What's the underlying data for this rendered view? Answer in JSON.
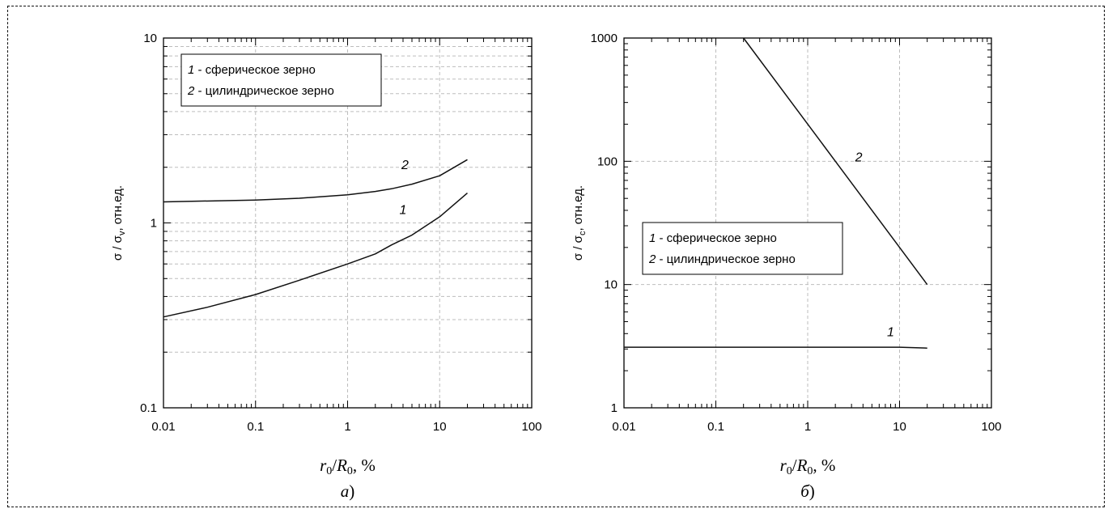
{
  "chart_data": [
    {
      "type": "line",
      "panel": "а)",
      "panel_letter": "а",
      "xlabel": "r0/R0, %",
      "xlabel_parts": {
        "r": "r",
        "r_sub": "0",
        "slash": "/",
        "R": "R",
        "R_sub": "0",
        "unit": ", %"
      },
      "ylabel": "σ / σv, отн.ед.",
      "ylabel_parts": {
        "main": "σ / σ",
        "sub": "v",
        "tail": ", отн.ед."
      },
      "x_scale": "log",
      "y_scale": "log",
      "xlim": [
        0.01,
        100
      ],
      "ylim": [
        0.1,
        10
      ],
      "x_ticks": [
        "0.01",
        "0.1",
        "1",
        "10",
        "100"
      ],
      "y_ticks": [
        "0.1",
        "1",
        "10"
      ],
      "grid": true,
      "legend_position": "top-left",
      "legend": [
        {
          "num": "1",
          "text": " - сферическое зерно"
        },
        {
          "num": "2",
          "text": " - цилиндрическое зерно"
        }
      ],
      "series": [
        {
          "name": "1",
          "x": [
            0.01,
            0.03,
            0.1,
            0.3,
            1,
            2,
            3,
            5,
            10,
            20
          ],
          "y": [
            0.31,
            0.35,
            0.41,
            0.49,
            0.6,
            0.68,
            0.76,
            0.86,
            1.08,
            1.45
          ]
        },
        {
          "name": "2",
          "x": [
            0.01,
            0.1,
            0.3,
            1,
            2,
            3,
            5,
            10,
            20
          ],
          "y": [
            1.3,
            1.33,
            1.36,
            1.42,
            1.48,
            1.53,
            1.62,
            1.8,
            2.2
          ]
        }
      ],
      "curve_labels": [
        {
          "text": "1",
          "x": 4,
          "y": 1.12
        },
        {
          "text": "2",
          "x": 4.2,
          "y": 1.95
        }
      ]
    },
    {
      "type": "line",
      "panel": "б)",
      "panel_letter": "б",
      "xlabel": "r0/R0, %",
      "xlabel_parts": {
        "r": "r",
        "r_sub": "0",
        "slash": "/",
        "R": "R",
        "R_sub": "0",
        "unit": ", %"
      },
      "ylabel": "σ / σc, отн.ед.",
      "ylabel_parts": {
        "main": "σ / σ",
        "sub": "c",
        "tail": ", отн.ед."
      },
      "x_scale": "log",
      "y_scale": "log",
      "xlim": [
        0.01,
        100
      ],
      "ylim": [
        1,
        1000
      ],
      "x_ticks": [
        "0.01",
        "0.1",
        "1",
        "10",
        "100"
      ],
      "y_ticks": [
        "1",
        "10",
        "100",
        "1000"
      ],
      "grid": true,
      "legend_position": "center-left",
      "legend": [
        {
          "num": "1",
          "text": " - сферическое зерно"
        },
        {
          "num": "2",
          "text": " - цилиндрическое зерно"
        }
      ],
      "series": [
        {
          "name": "1",
          "x": [
            0.01,
            0.1,
            1,
            10,
            20
          ],
          "y": [
            3.1,
            3.1,
            3.1,
            3.1,
            3.05
          ]
        },
        {
          "name": "2",
          "x": [
            0.2,
            2,
            20
          ],
          "y": [
            1000,
            100,
            10
          ]
        }
      ],
      "curve_labels": [
        {
          "text": "1",
          "x": 8,
          "y": 3.8
        },
        {
          "text": "2",
          "x": 3.6,
          "y": 100
        }
      ]
    }
  ]
}
